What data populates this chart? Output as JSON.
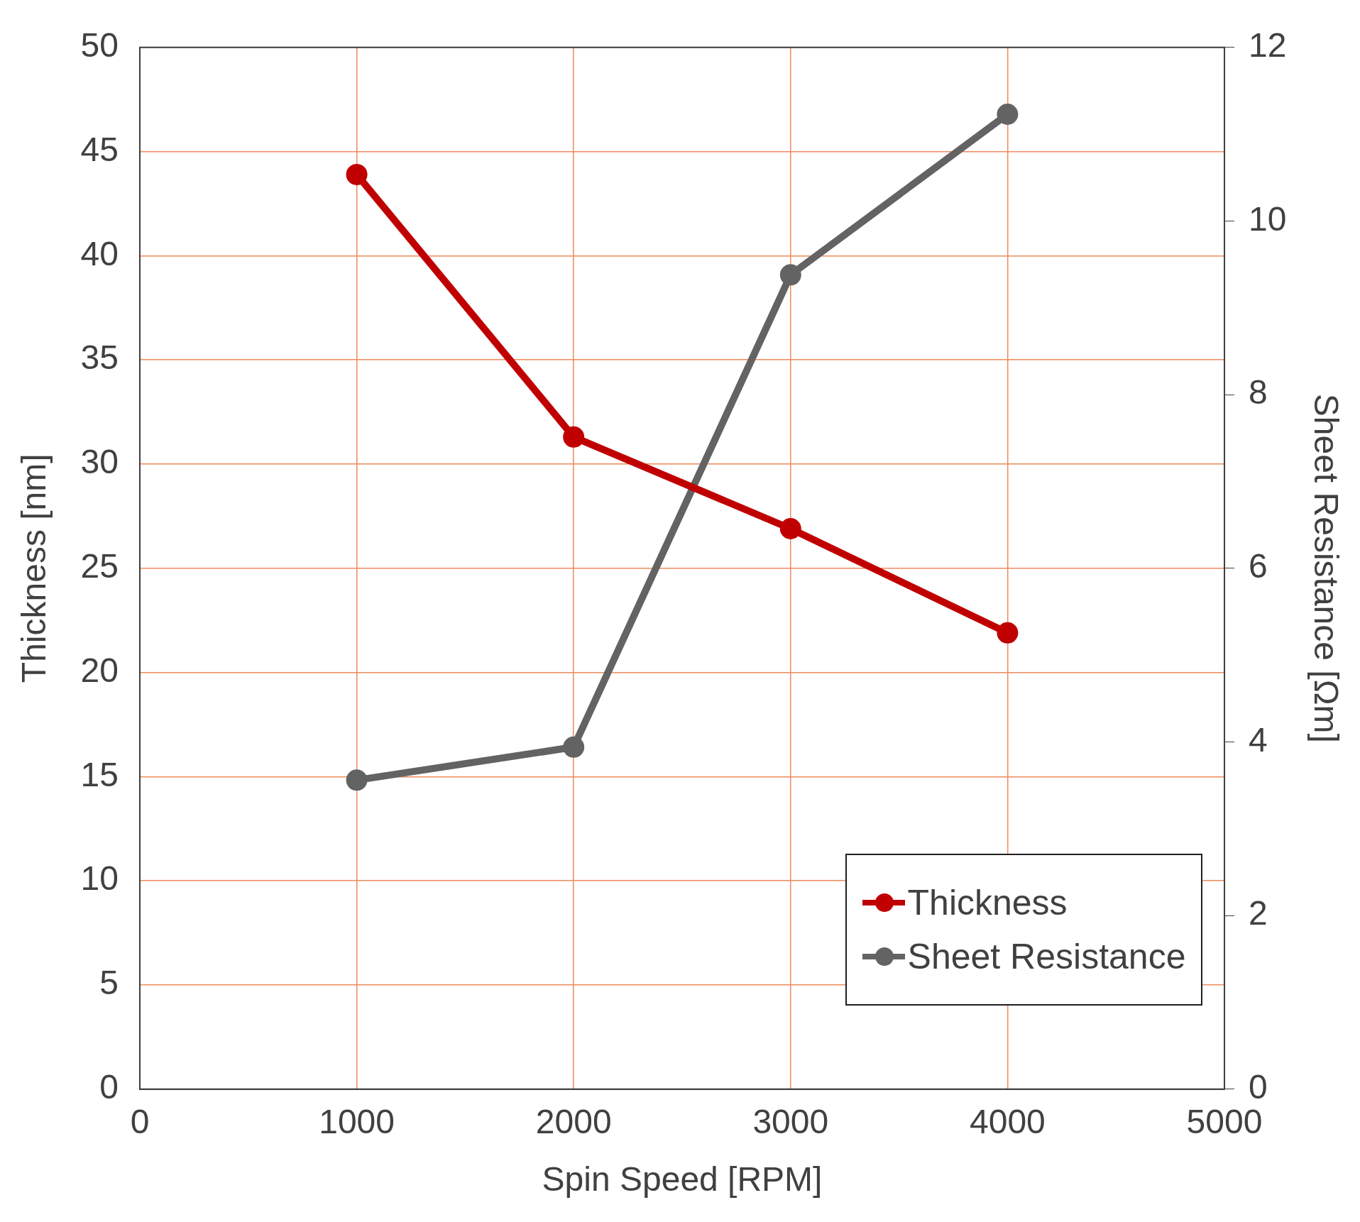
{
  "chart_data": {
    "type": "line",
    "xlabel": "Spin Speed [RPM]",
    "ylabel": "Thickness [nm]",
    "y2label": "Sheet Resistance [Ωm]",
    "x": [
      1000,
      2000,
      3000,
      4000
    ],
    "series": [
      {
        "name": "Thickness",
        "color": "#c00000",
        "values": [
          43.9,
          31.3,
          26.9,
          21.9
        ]
      },
      {
        "name": "Sheet Resistance",
        "color": "#636363",
        "values": [
          3.56,
          3.94,
          9.38,
          11.23
        ],
        "axis": "y2"
      }
    ],
    "xlim": [
      0,
      5000
    ],
    "xticks": [
      0,
      1000,
      2000,
      3000,
      4000,
      5000
    ],
    "ylim": [
      0,
      50
    ],
    "yticks": [
      0,
      5,
      10,
      15,
      20,
      25,
      30,
      35,
      40,
      45,
      50
    ],
    "y2lim": [
      0,
      12
    ],
    "y2ticks": [
      0,
      2,
      4,
      6,
      8,
      10,
      12
    ],
    "grid": true,
    "legend": "bottom right",
    "marker": "circle",
    "line_style": "solid"
  }
}
